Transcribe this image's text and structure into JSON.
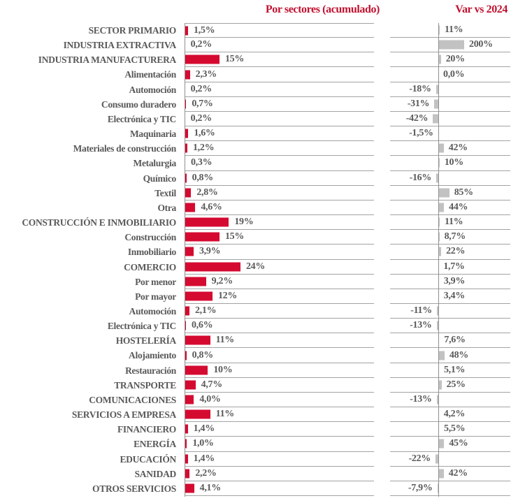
{
  "header": {
    "left_title": "Por sectores (acumulado)",
    "right_title": "Var vs 2024"
  },
  "colors": {
    "bar_red": "#D50A30",
    "title_red": "#C11230",
    "bar_gray": "#C2C2C2",
    "text_gray": "#595959",
    "line_gray": "#A3A3A3"
  },
  "chart_data": {
    "type": "bar",
    "orientation": "horizontal",
    "grid": "row-separator-lines",
    "categories": [
      "SECTOR PRIMARIO",
      "INDUSTRIA EXTRACTIVA",
      "INDUSTRIA MANUFACTURERA",
      "Alimentación",
      "Automoción",
      "Consumo duradero",
      "Electrónica y TIC",
      "Maquinaria",
      "Materiales de construcción",
      "Metalurgia",
      "Químico",
      "Textil",
      "Otra",
      "CONSTRUCCIÓN E INMOBILIARIO",
      "Construcción",
      "Inmobiliario",
      "COMERCIO",
      "Por menor",
      "Por mayor",
      "Automoción",
      "Electrónica y TIC",
      "HOSTELERÍA",
      "Alojamiento",
      "Restauración",
      "TRANSPORTE",
      "COMUNICACIONES",
      "SERVICIOS A EMPRESA",
      "FINANCIERO",
      "ENERGÍA",
      "EDUCACIÓN",
      "SANIDAD",
      "OTROS SERVICIOS"
    ],
    "series": [
      {
        "name": "Por sectores (acumulado)",
        "unit": "%",
        "color": "#D50A30",
        "xlim": [
          0,
          81
        ],
        "values": [
          1.5,
          0.2,
          15,
          2.3,
          0.2,
          0.7,
          0.2,
          1.6,
          1.2,
          0.3,
          0.8,
          2.8,
          4.6,
          19,
          15,
          3.9,
          24,
          9.2,
          12,
          2.1,
          0.6,
          11,
          0.8,
          10,
          4.7,
          4.0,
          11,
          1.4,
          1.0,
          1.4,
          2.2,
          4.1
        ],
        "labels": [
          "1,5%",
          "0,2%",
          "15%",
          "2,3%",
          "0,2%",
          "0,7%",
          "0,2%",
          "1,6%",
          "1,2%",
          "0,3%",
          "0,8%",
          "2,8%",
          "4,6%",
          "19%",
          "15%",
          "3,9%",
          "24%",
          "9,2%",
          "12%",
          "2,1%",
          "0,6%",
          "11%",
          "0,8%",
          "10%",
          "4,7%",
          "4,0%",
          "11%",
          "1,4%",
          "1,0%",
          "1,4%",
          "2,2%",
          "4,1%"
        ]
      },
      {
        "name": "Var vs 2024",
        "unit": "%",
        "color": "#C2C2C2",
        "xlim": [
          -373,
          557
        ],
        "values": [
          11,
          200,
          20,
          0,
          -18,
          -31,
          -42,
          -1.5,
          42,
          10,
          -16,
          85,
          44,
          11,
          8.7,
          22,
          1.7,
          3.9,
          3.4,
          -11,
          -13,
          7.6,
          48,
          5.1,
          25,
          -13,
          4.2,
          5.5,
          45,
          -22,
          42,
          -7.9
        ],
        "labels": [
          "11%",
          "200%",
          "20%",
          "0,0%",
          "-18%",
          "-31%",
          "-42%",
          "-1,5%",
          "42%",
          "10%",
          "-16%",
          "85%",
          "44%",
          "11%",
          "8,7%",
          "22%",
          "1,7%",
          "3,9%",
          "3,4%",
          "-11%",
          "-13%",
          "7,6%",
          "48%",
          "5,1%",
          "25%",
          "-13%",
          "4,2%",
          "5,5%",
          "45%",
          "-22%",
          "42%",
          "-7,9%"
        ]
      }
    ]
  }
}
